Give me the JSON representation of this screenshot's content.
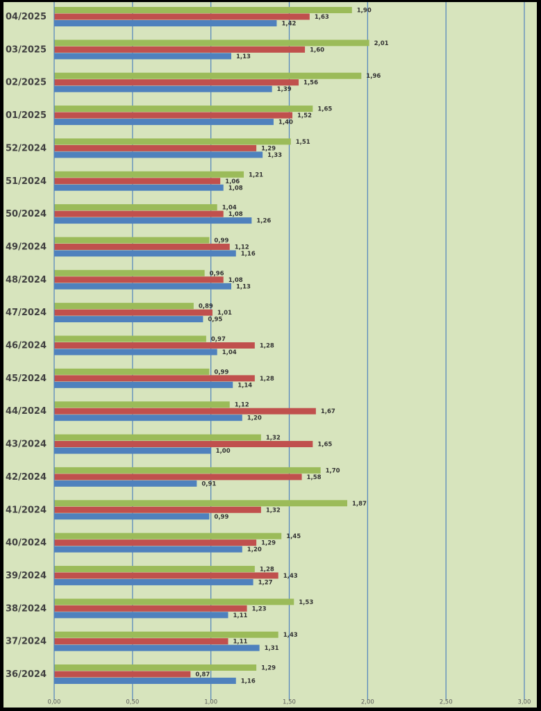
{
  "chart_data": {
    "type": "bar",
    "orientation": "horizontal",
    "categories": [
      "04/2025",
      "03/2025",
      "02/2025",
      "01/2025",
      "52/2024",
      "51/2024",
      "50/2024",
      "49/2024",
      "48/2024",
      "47/2024",
      "46/2024",
      "45/2024",
      "44/2024",
      "43/2024",
      "42/2024",
      "41/2024",
      "40/2024",
      "39/2024",
      "38/2024",
      "37/2024",
      "36/2024"
    ],
    "value_labels": {
      "green": [
        "1,90",
        "2,01",
        "1,96",
        "1,65",
        "1,51",
        "1,21",
        "1,04",
        "0,99",
        "0,96",
        "0,89",
        "0,97",
        "0,99",
        "1,12",
        "1,32",
        "1,70",
        "1,87",
        "1,45",
        "1,28",
        "1,53",
        "1,43",
        "1,29"
      ],
      "red": [
        "1,63",
        "1,60",
        "1,56",
        "1,52",
        "1,29",
        "1,06",
        "1,08",
        "1,12",
        "1,08",
        "1,01",
        "1,28",
        "1,28",
        "1,67",
        "1,65",
        "1,58",
        "1,32",
        "1,29",
        "1,43",
        "1,23",
        "1,11",
        "0,87"
      ],
      "blue": [
        "1,42",
        "1,13",
        "1,39",
        "1,40",
        "1,33",
        "1,08",
        "1,26",
        "1,16",
        "1,13",
        "0,95",
        "1,04",
        "1,14",
        "1,20",
        "1,00",
        "0,91",
        "0,99",
        "1,20",
        "1,27",
        "1,11",
        "1,31",
        "1,16"
      ]
    },
    "series": [
      {
        "color": "#9BBB59",
        "values": [
          1.9,
          2.01,
          1.96,
          1.65,
          1.51,
          1.21,
          1.04,
          0.99,
          0.96,
          0.89,
          0.97,
          0.99,
          1.12,
          1.32,
          1.7,
          1.87,
          1.45,
          1.28,
          1.53,
          1.43,
          1.29
        ]
      },
      {
        "color": "#C0504D",
        "values": [
          1.63,
          1.6,
          1.56,
          1.52,
          1.29,
          1.06,
          1.08,
          1.12,
          1.08,
          1.01,
          1.28,
          1.28,
          1.67,
          1.65,
          1.58,
          1.32,
          1.29,
          1.43,
          1.23,
          1.11,
          0.87
        ]
      },
      {
        "color": "#4F81BD",
        "values": [
          1.42,
          1.13,
          1.39,
          1.4,
          1.33,
          1.08,
          1.26,
          1.16,
          1.13,
          0.95,
          1.04,
          1.14,
          1.2,
          1.0,
          0.91,
          0.99,
          1.2,
          1.27,
          1.11,
          1.31,
          1.16
        ]
      }
    ],
    "x_ticks": [
      "0,00",
      "0,50",
      "1,00",
      "1,50",
      "2,00",
      "2,50",
      "3,00"
    ],
    "xlim": [
      0,
      3
    ],
    "grid": "vertical",
    "legend": "none",
    "title": "",
    "xlabel": "",
    "ylabel": ""
  },
  "colors": {
    "plot_background": "#D7E4BD",
    "gridline": "#4F81BD",
    "frame": "#000000"
  }
}
